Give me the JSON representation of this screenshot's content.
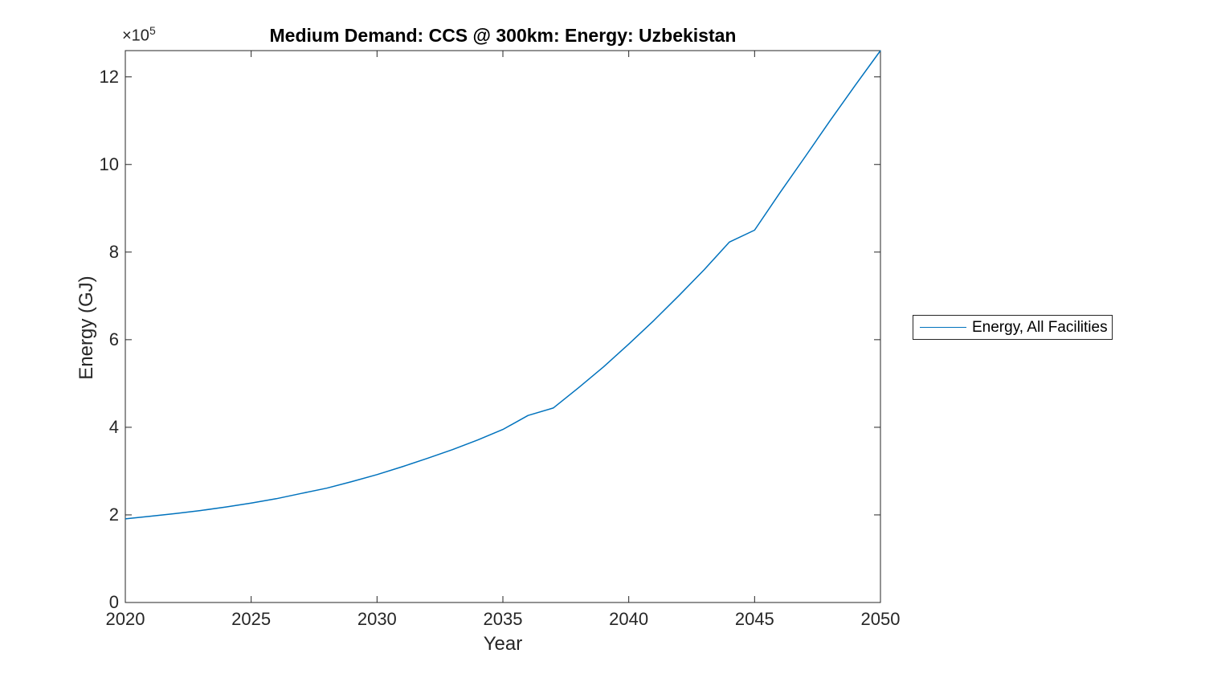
{
  "figure": {
    "background_color": "#ffffff"
  },
  "chart_data": {
    "type": "line",
    "title": "Medium Demand: CCS @ 300km: Energy: Uzbekistan",
    "xlabel": "Year",
    "ylabel": "Energy (GJ)",
    "y_exponent_base": "×10",
    "y_exponent": "5",
    "y_unit_note": "y values are in units of 10^5 GJ as displayed on axis",
    "xlim": [
      2020,
      2050
    ],
    "ylim_1e5": [
      0,
      12.6
    ],
    "x_ticks": [
      2020,
      2025,
      2030,
      2035,
      2040,
      2045,
      2050
    ],
    "y_ticks_1e5": [
      0,
      2,
      4,
      6,
      8,
      10,
      12
    ],
    "grid": false,
    "box": true,
    "legend": {
      "position": "right-outside",
      "entries": [
        "Energy, All Facilities"
      ]
    },
    "series": [
      {
        "name": "Energy, All Facilities",
        "color": "#0072BD",
        "x": [
          2020,
          2021,
          2022,
          2023,
          2024,
          2025,
          2026,
          2027,
          2028,
          2029,
          2030,
          2031,
          2032,
          2033,
          2034,
          2035,
          2036,
          2037,
          2038,
          2039,
          2040,
          2041,
          2042,
          2043,
          2044,
          2045,
          2046,
          2047,
          2048,
          2049,
          2050
        ],
        "values_1e5_gj": [
          1.91,
          1.97,
          2.03,
          2.1,
          2.18,
          2.27,
          2.37,
          2.49,
          2.61,
          2.76,
          2.92,
          3.1,
          3.29,
          3.49,
          3.71,
          3.95,
          4.27,
          4.44,
          4.9,
          5.38,
          5.9,
          6.44,
          7.01,
          7.6,
          8.23,
          8.5,
          9.35,
          10.17,
          11.0,
          11.81,
          12.6
        ]
      }
    ],
    "colors": {
      "axis": "#262626",
      "title_text": "#000000",
      "tick_text": "#262626",
      "line": "#0072BD",
      "legend_border": "#262626"
    }
  }
}
